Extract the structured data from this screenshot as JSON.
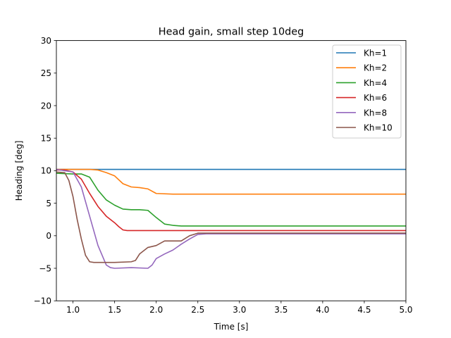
{
  "chart_data": {
    "type": "line",
    "title": "Head gain, small step 10deg",
    "xlabel": "Time [s]",
    "ylabel": "Heading [deg]",
    "xlim": [
      0.8,
      5.0
    ],
    "ylim": [
      -10,
      30
    ],
    "xticks": [
      1.0,
      1.5,
      2.0,
      2.5,
      3.0,
      3.5,
      4.0,
      4.5,
      5.0
    ],
    "xtick_labels": [
      "1.0",
      "1.5",
      "2.0",
      "2.5",
      "3.0",
      "3.5",
      "4.0",
      "4.5",
      "5.0"
    ],
    "yticks": [
      -10,
      -5,
      0,
      5,
      10,
      15,
      20,
      25,
      30
    ],
    "ytick_labels": [
      "−10",
      "−5",
      "0",
      "5",
      "10",
      "15",
      "20",
      "25",
      "30"
    ],
    "grid": false,
    "legend_position": "top-right",
    "series": [
      {
        "name": "Kh=1",
        "color": "#1f77b4",
        "x": [
          0.8,
          1.0,
          1.2,
          1.4,
          1.6,
          2.0,
          2.5,
          3.0,
          3.5,
          4.0,
          4.5,
          5.0
        ],
        "y": [
          10.2,
          10.2,
          10.2,
          10.2,
          10.2,
          10.2,
          10.2,
          10.2,
          10.2,
          10.2,
          10.2,
          10.2
        ]
      },
      {
        "name": "Kh=2",
        "color": "#ff7f0e",
        "x": [
          0.8,
          1.0,
          1.2,
          1.3,
          1.4,
          1.5,
          1.6,
          1.7,
          1.8,
          1.9,
          2.0,
          2.2,
          2.5,
          3.0,
          3.5,
          4.0,
          4.5,
          5.0
        ],
        "y": [
          10.2,
          10.2,
          10.2,
          10.1,
          9.7,
          9.2,
          8.0,
          7.5,
          7.4,
          7.2,
          6.5,
          6.4,
          6.4,
          6.4,
          6.4,
          6.4,
          6.4,
          6.4
        ]
      },
      {
        "name": "Kh=4",
        "color": "#2ca02c",
        "x": [
          0.8,
          1.0,
          1.1,
          1.2,
          1.3,
          1.4,
          1.5,
          1.6,
          1.7,
          1.8,
          1.9,
          2.0,
          2.1,
          2.2,
          2.3,
          2.5,
          3.0,
          3.5,
          4.0,
          4.5,
          5.0
        ],
        "y": [
          9.6,
          9.5,
          9.5,
          9.0,
          7.0,
          5.5,
          4.7,
          4.1,
          4.0,
          4.0,
          3.9,
          2.8,
          1.8,
          1.6,
          1.5,
          1.5,
          1.5,
          1.5,
          1.5,
          1.5,
          1.5
        ]
      },
      {
        "name": "Kh=6",
        "color": "#d62728",
        "x": [
          0.8,
          0.9,
          1.0,
          1.1,
          1.2,
          1.3,
          1.4,
          1.5,
          1.55,
          1.6,
          1.65,
          2.0,
          2.5,
          3.0,
          3.5,
          4.0,
          4.5,
          5.0
        ],
        "y": [
          10.1,
          10.1,
          9.8,
          8.7,
          6.5,
          4.5,
          3.0,
          2.0,
          1.4,
          0.9,
          0.8,
          0.8,
          0.8,
          0.8,
          0.8,
          0.8,
          0.8,
          0.8
        ]
      },
      {
        "name": "Kh=8",
        "color": "#9467bd",
        "x": [
          0.8,
          0.9,
          1.0,
          1.1,
          1.2,
          1.3,
          1.4,
          1.45,
          1.5,
          1.7,
          1.9,
          1.95,
          2.0,
          2.1,
          2.2,
          2.3,
          2.4,
          2.5,
          2.6,
          3.0,
          3.5,
          4.0,
          4.5,
          5.0
        ],
        "y": [
          10.2,
          10.0,
          9.8,
          7.5,
          3.0,
          -1.5,
          -4.5,
          -4.9,
          -5.0,
          -4.9,
          -5.0,
          -4.5,
          -3.5,
          -2.8,
          -2.2,
          -1.3,
          -0.5,
          0.2,
          0.3,
          0.3,
          0.3,
          0.3,
          0.3,
          0.3
        ]
      },
      {
        "name": "Kh=10",
        "color": "#8c564b",
        "x": [
          0.8,
          0.9,
          0.95,
          1.0,
          1.05,
          1.1,
          1.15,
          1.2,
          1.25,
          1.3,
          1.5,
          1.7,
          1.75,
          1.8,
          1.9,
          2.0,
          2.1,
          2.3,
          2.4,
          2.5,
          3.0,
          3.5,
          4.0,
          4.5,
          5.0
        ],
        "y": [
          9.8,
          9.7,
          8.5,
          6.0,
          2.5,
          -0.5,
          -3.0,
          -4.0,
          -4.1,
          -4.1,
          -4.1,
          -4.0,
          -3.8,
          -2.8,
          -1.8,
          -1.5,
          -0.8,
          -0.8,
          0.0,
          0.4,
          0.4,
          0.4,
          0.4,
          0.4,
          0.4
        ]
      }
    ]
  }
}
